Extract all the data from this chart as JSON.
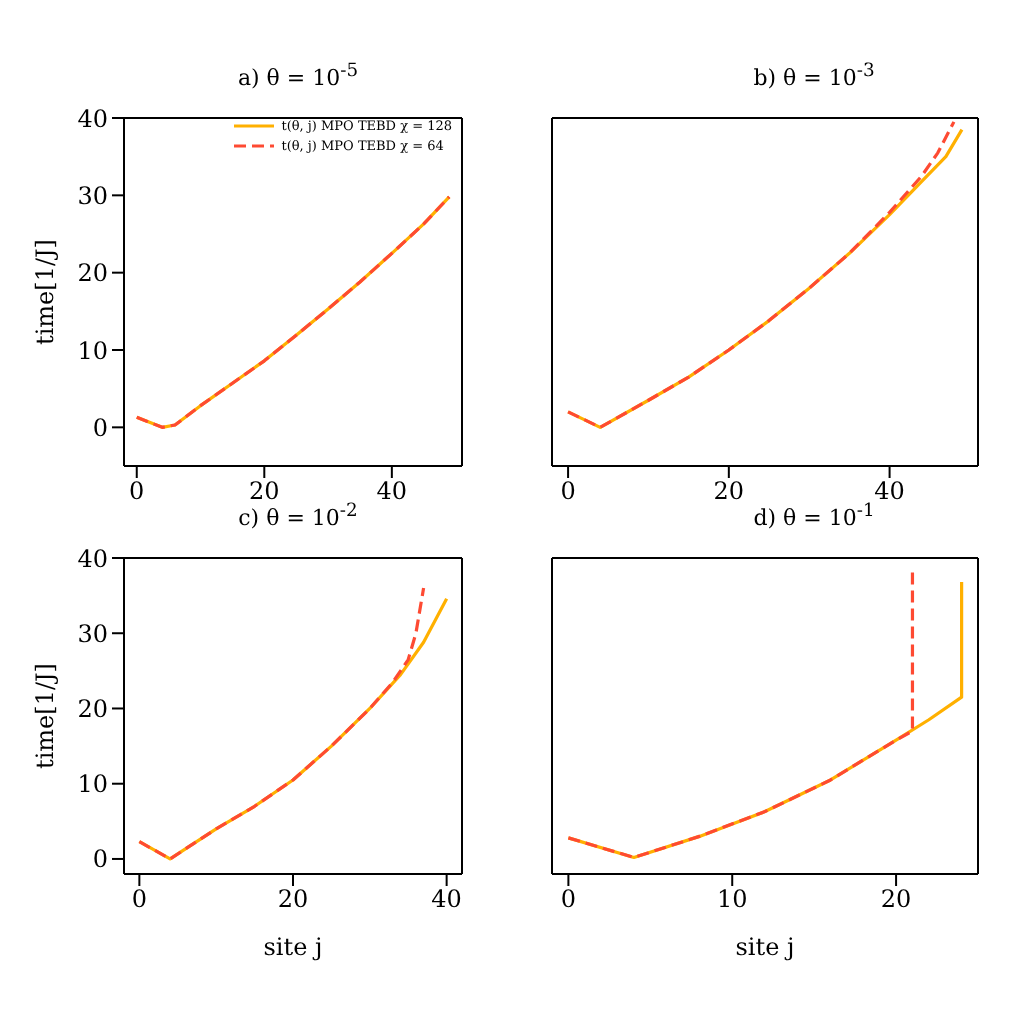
{
  "chart_data": [
    {
      "type": "line",
      "title": "a) θ = 10$^{-5}$",
      "ylabel": "time[1/J]",
      "xlim": [
        -2,
        51
      ],
      "ylim": [
        -5,
        40
      ],
      "xticks": [
        0,
        20,
        40
      ],
      "yticks": [
        0,
        10,
        20,
        30,
        40
      ],
      "legend": "top right",
      "marker": "none",
      "series": [
        {
          "name": "t(θ, j) MPO TEBD χ = 128",
          "color": "#ffb000",
          "line_style": "solid",
          "x": [
            0,
            4,
            6,
            10,
            15,
            20,
            25,
            30,
            35,
            40,
            45,
            49
          ],
          "values": [
            1.3,
            0,
            0.3,
            2.8,
            5.7,
            8.6,
            11.9,
            15.3,
            18.8,
            22.5,
            26.3,
            29.8
          ]
        },
        {
          "name": "t(θ, j) MPO TEBD χ = 64",
          "color": "#fe4a32",
          "line_style": "dashed",
          "x": [
            0,
            4,
            6,
            10,
            15,
            20,
            25,
            30,
            35,
            40,
            45,
            49
          ],
          "values": [
            1.3,
            0,
            0.3,
            2.8,
            5.7,
            8.6,
            11.9,
            15.3,
            18.8,
            22.5,
            26.3,
            29.8
          ]
        }
      ]
    },
    {
      "type": "line",
      "title": "b) θ = 10$^{-3}$",
      "xlim": [
        -2,
        51
      ],
      "ylim": [
        -5,
        40
      ],
      "xticks": [
        0,
        20,
        40
      ],
      "yticks": [
        0,
        10,
        20,
        30,
        40
      ],
      "tick_labels": "x",
      "legend": false,
      "marker": "none",
      "series": [
        {
          "color": "#ffb000",
          "line_style": "solid",
          "x": [
            0,
            4,
            10,
            15,
            20,
            25,
            30,
            35,
            40,
            44,
            47,
            49
          ],
          "values": [
            2,
            0,
            3.5,
            6.5,
            10,
            13.8,
            18,
            22.5,
            27.5,
            31.8,
            35,
            38.5
          ]
        },
        {
          "color": "#fe4a32",
          "line_style": "dashed",
          "x": [
            0,
            4,
            10,
            15,
            20,
            25,
            30,
            35,
            40,
            44,
            46,
            48
          ],
          "values": [
            2,
            0,
            3.5,
            6.5,
            10,
            13.8,
            18,
            22.5,
            27.8,
            32.5,
            35.5,
            39.5
          ]
        }
      ]
    },
    {
      "type": "line",
      "title": "c) θ = 10$^{-2}$",
      "xlabel": "site j",
      "ylabel": "time[1/J]",
      "xlim": [
        -2,
        42
      ],
      "ylim": [
        -2,
        40
      ],
      "xticks": [
        0,
        20,
        40
      ],
      "yticks": [
        0,
        10,
        20,
        30,
        40
      ],
      "legend": false,
      "marker": "none",
      "series": [
        {
          "color": "#ffb000",
          "line_style": "solid",
          "x": [
            0,
            4,
            10,
            15,
            20,
            25,
            30,
            34,
            37,
            40
          ],
          "values": [
            2.3,
            0,
            4,
            7,
            10.5,
            15,
            20,
            24.5,
            28.8,
            34.6
          ]
        },
        {
          "color": "#fe4a32",
          "line_style": "dashed",
          "x": [
            0,
            4,
            10,
            15,
            20,
            25,
            30,
            33,
            35,
            36,
            37
          ],
          "values": [
            2.3,
            0,
            4,
            7,
            10.5,
            15,
            20,
            23.5,
            26.5,
            30,
            36
          ]
        }
      ]
    },
    {
      "type": "line",
      "title": "d) θ = 10$^{-1}$",
      "xlabel": "site j",
      "xlim": [
        -1,
        25
      ],
      "ylim": [
        -2,
        40
      ],
      "xticks": [
        0,
        10,
        20
      ],
      "yticks": [
        0,
        10,
        20,
        30,
        40
      ],
      "tick_labels": "x",
      "legend": false,
      "marker": "none",
      "series": [
        {
          "color": "#ffb000",
          "line_style": "solid",
          "x": [
            0,
            4,
            8,
            12,
            16,
            20,
            22,
            24,
            24
          ],
          "values": [
            2.8,
            0.2,
            3,
            6.3,
            10.5,
            15.8,
            18.5,
            21.5,
            36.8
          ]
        },
        {
          "color": "#fe4a32",
          "line_style": "dashed",
          "x": [
            0,
            4,
            8,
            12,
            16,
            20,
            21,
            21
          ],
          "values": [
            2.8,
            0.2,
            3,
            6.3,
            10.5,
            15.8,
            17,
            38.5
          ]
        }
      ]
    }
  ]
}
